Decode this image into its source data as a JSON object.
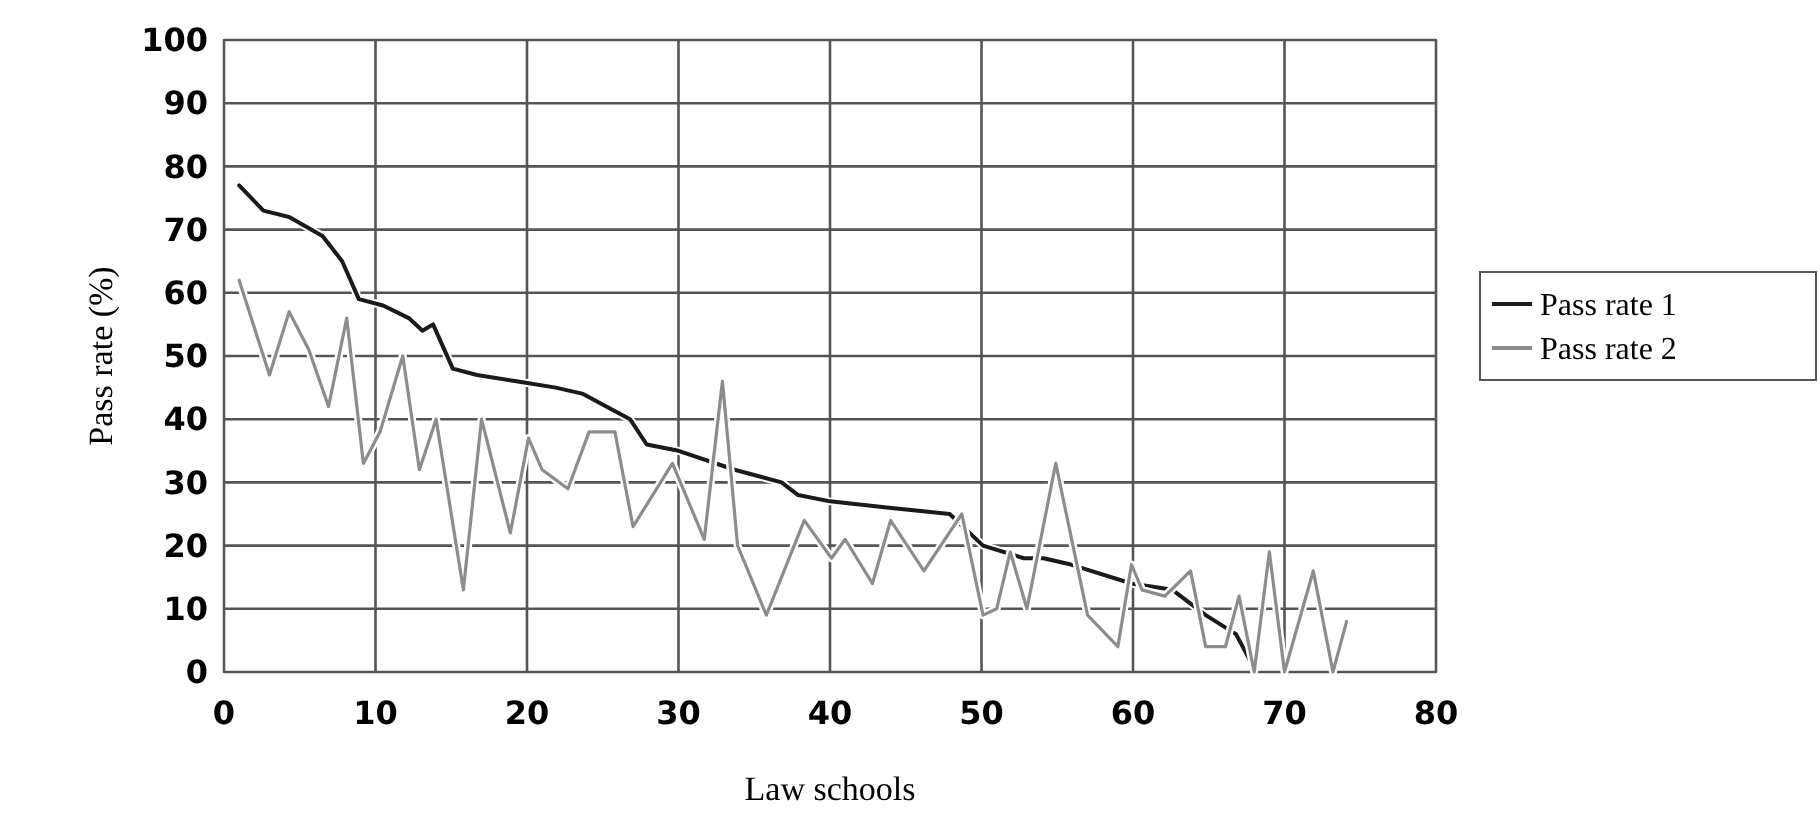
{
  "chart_data": {
    "type": "line",
    "xlabel": "Law schools",
    "ylabel": "Pass rate (%)",
    "xlim": [
      0,
      80
    ],
    "xticks": [
      0,
      10,
      20,
      30,
      40,
      50,
      60,
      70,
      80
    ],
    "ylim": [
      0,
      100
    ],
    "yticks": [
      0,
      10,
      20,
      30,
      40,
      50,
      60,
      70,
      80,
      90,
      100
    ],
    "grid": true,
    "legend": "right",
    "marker": "none",
    "line_style": "solid",
    "series": [
      {
        "name": "Pass rate 1",
        "color": "#1a1a1a",
        "x": [
          1,
          2.6,
          4.3,
          6.5,
          7.8,
          8.9,
          10.5,
          12.2,
          13.1,
          13.8,
          15.1,
          16.7,
          19.3,
          21.9,
          23.7,
          26.8,
          27.9,
          30,
          33.7,
          36.8,
          37.9,
          40,
          43.9,
          47.9,
          50.1,
          52.8,
          54.1,
          55.9,
          59.9,
          62.6,
          64.8,
          66.8,
          67.9
        ],
        "values": [
          77,
          73,
          72,
          69,
          65,
          59,
          58,
          56,
          54,
          55,
          48,
          47,
          46,
          45,
          44,
          40,
          36,
          35,
          32,
          30,
          28,
          27,
          26,
          25,
          20,
          18,
          18,
          17,
          14,
          13,
          9,
          6,
          1
        ]
      },
      {
        "name": "Pass rate 2",
        "color": "#8c8c8c",
        "x": [
          1,
          3,
          4.3,
          5.6,
          6.9,
          8.1,
          9.2,
          10.3,
          11.8,
          12.9,
          14,
          15.8,
          17,
          18.9,
          20.1,
          21,
          22.7,
          24.1,
          25.8,
          27,
          29.6,
          31.7,
          32.9,
          33.9,
          35.8,
          38.3,
          40.1,
          41,
          42.8,
          44,
          46.2,
          48.7,
          50.1,
          51,
          51.9,
          53,
          54.9,
          57,
          59,
          59.9,
          60.6,
          62.1,
          63.8,
          64.8,
          66.1,
          67,
          68,
          69,
          70,
          71.9,
          73.2,
          74.1
        ],
        "values": [
          62,
          47,
          57,
          51,
          42,
          56,
          33,
          38,
          50,
          32,
          40,
          13,
          40,
          22,
          37,
          32,
          29,
          38,
          38,
          23,
          33,
          21,
          46,
          20,
          9,
          24,
          18,
          21,
          14,
          24,
          16,
          25,
          9,
          10,
          19,
          10,
          33,
          9,
          4,
          17,
          13,
          12,
          16,
          4,
          4,
          12,
          0,
          19,
          0,
          16,
          0,
          8
        ]
      }
    ]
  }
}
